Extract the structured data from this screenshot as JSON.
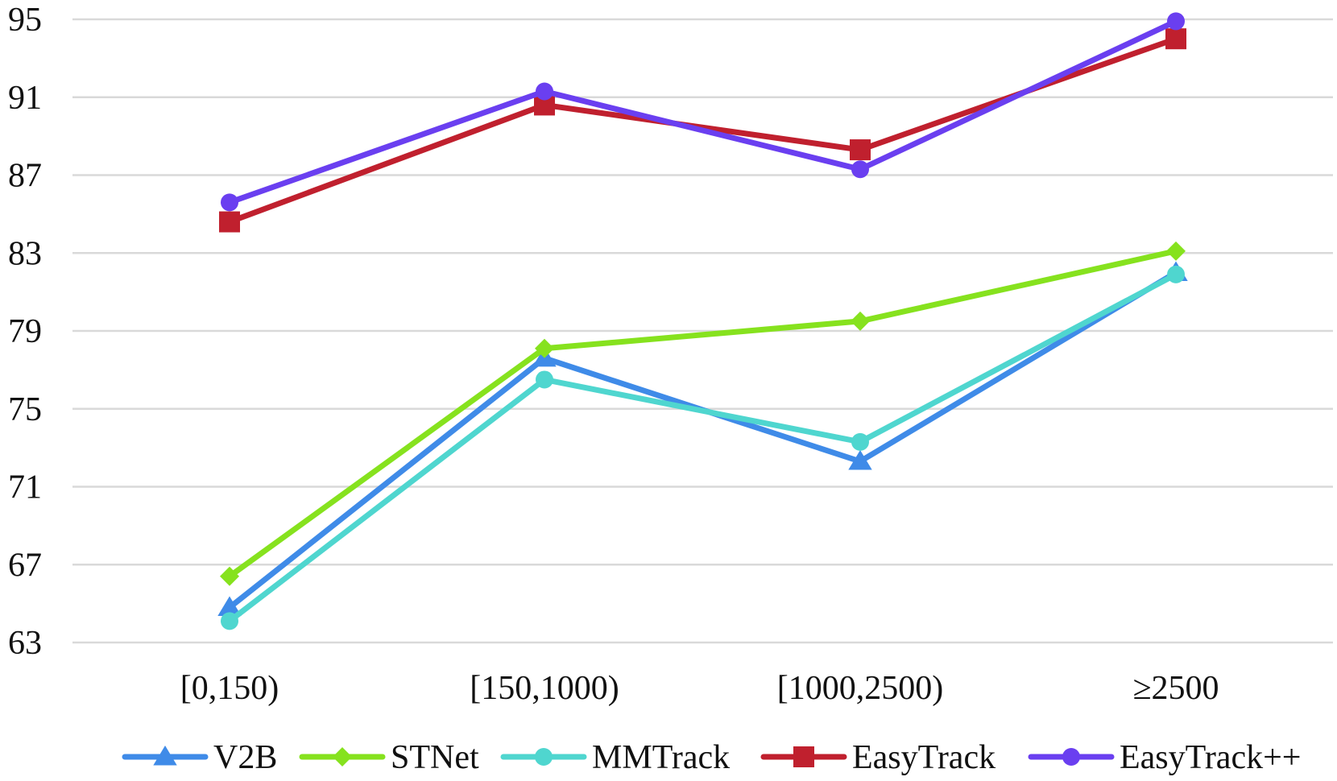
{
  "chart_data": {
    "type": "line",
    "title": "",
    "xlabel": "",
    "ylabel": "",
    "categories": [
      "[0,150)",
      "[150,1000)",
      "[1000,2500)",
      "≥2500"
    ],
    "ylim": [
      63,
      95
    ],
    "yticks": [
      63,
      67,
      71,
      75,
      79,
      83,
      87,
      91,
      95
    ],
    "grid": true,
    "legend_position": "bottom",
    "series": [
      {
        "name": "V2B",
        "values": [
          64.8,
          77.6,
          72.3,
          82.0
        ],
        "color": "#3f8be8",
        "marker": "triangle"
      },
      {
        "name": "STNet",
        "values": [
          66.4,
          78.1,
          79.5,
          83.1
        ],
        "color": "#86e21e",
        "marker": "diamond"
      },
      {
        "name": "MMTrack",
        "values": [
          64.1,
          76.5,
          73.3,
          81.9
        ],
        "color": "#4fd6cf",
        "marker": "circle"
      },
      {
        "name": "EasyTrack",
        "values": [
          84.6,
          90.6,
          88.3,
          94.0
        ],
        "color": "#c0202e",
        "marker": "square"
      },
      {
        "name": "EasyTrack++",
        "values": [
          85.6,
          91.3,
          87.3,
          94.9
        ],
        "color": "#6a3ff0",
        "marker": "circle"
      }
    ]
  }
}
